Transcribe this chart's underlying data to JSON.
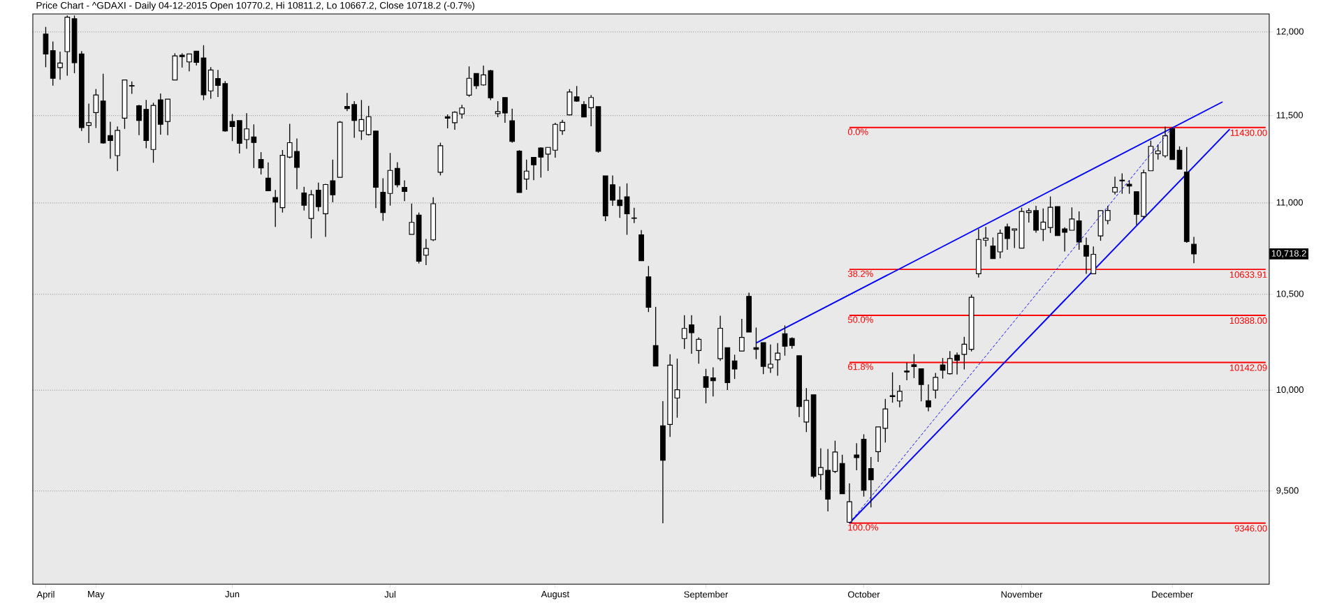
{
  "chart_data": {
    "type": "candlestick",
    "title": "Price Chart - ^GDAXI - Daily 04-12-2015 Open 10770.2, Hi 10811.2, Lo 10667.2, Close 10718.2 (-0.7%)",
    "categories": [
      "April",
      null,
      null,
      null,
      null,
      null,
      null,
      "May",
      null,
      null,
      null,
      null,
      null,
      null,
      null,
      null,
      null,
      null,
      null,
      null,
      null,
      null,
      null,
      null,
      null,
      null,
      "Jun",
      null,
      null,
      null,
      null,
      null,
      null,
      null,
      null,
      null,
      null,
      null,
      null,
      null,
      null,
      null,
      null,
      null,
      null,
      null,
      null,
      null,
      "Jul",
      null,
      null,
      null,
      null,
      null,
      null,
      null,
      null,
      null,
      null,
      null,
      null,
      null,
      null,
      null,
      null,
      null,
      null,
      null,
      null,
      null,
      null,
      "August",
      null,
      null,
      null,
      null,
      null,
      null,
      null,
      null,
      null,
      null,
      null,
      null,
      null,
      null,
      null,
      null,
      null,
      null,
      null,
      null,
      "September",
      null,
      null,
      null,
      null,
      null,
      null,
      null,
      null,
      null,
      null,
      null,
      null,
      null,
      null,
      null,
      null,
      null,
      null,
      null,
      null,
      null,
      "October",
      null,
      null,
      null,
      null,
      null,
      null,
      null,
      null,
      null,
      null,
      null,
      null,
      null,
      null,
      null,
      null,
      null,
      null,
      null,
      null,
      null,
      "November",
      null,
      null,
      null,
      null,
      null,
      null,
      null,
      null,
      null,
      null,
      null,
      null,
      null,
      null,
      null,
      null,
      null,
      null,
      null,
      null,
      "December",
      null,
      null,
      null,
      null,
      null,
      null,
      null,
      null,
      null,
      null,
      null,
      null,
      null
    ],
    "ohlc": [
      [
        11987,
        12030,
        11786,
        11866
      ],
      [
        11886,
        11941,
        11676,
        11720
      ],
      [
        11784,
        11880,
        11711,
        11811
      ],
      [
        11880,
        12100,
        11735,
        12090
      ],
      [
        12080,
        12100,
        11750,
        11813
      ],
      [
        11866,
        11883,
        11410,
        11429
      ],
      [
        11443,
        11570,
        11340,
        11458
      ],
      [
        11517,
        11656,
        11427,
        11621
      ],
      [
        11585,
        11747,
        11336,
        11340
      ],
      [
        11383,
        11463,
        11250,
        11354
      ],
      [
        11268,
        11436,
        11179,
        11413
      ],
      [
        11484,
        11710,
        11422,
        11710
      ],
      [
        11676,
        11701,
        11628,
        11674
      ],
      [
        11557,
        11563,
        11386,
        11471
      ],
      [
        11536,
        11591,
        11310,
        11354
      ],
      [
        11303,
        11575,
        11227,
        11559
      ],
      [
        11592,
        11629,
        11389,
        11449
      ],
      [
        11465,
        11596,
        11386,
        11596
      ],
      [
        11710,
        11870,
        11710,
        11854
      ],
      [
        11859,
        11870,
        11784,
        11850
      ],
      [
        11818,
        11866,
        11761,
        11866
      ],
      [
        11883,
        11883,
        11797,
        11815
      ],
      [
        11842,
        11919,
        11590,
        11622
      ],
      [
        11645,
        11786,
        11599,
        11769
      ],
      [
        11718,
        11770,
        11609,
        11677
      ],
      [
        11688,
        11703,
        11406,
        11410
      ],
      [
        11465,
        11509,
        11351,
        11436
      ],
      [
        11470,
        11470,
        11280,
        11338
      ],
      [
        11360,
        11513,
        11307,
        11422
      ],
      [
        11375,
        11448,
        11197,
        11343
      ],
      [
        11246,
        11288,
        11160,
        11198
      ],
      [
        11139,
        11229,
        11068,
        11068
      ],
      [
        11030,
        11073,
        10866,
        11004
      ],
      [
        10973,
        11300,
        10946,
        11269
      ],
      [
        11259,
        11451,
        11252,
        11342
      ],
      [
        11291,
        11366,
        11076,
        11200
      ],
      [
        11056,
        11090,
        10957,
        10987
      ],
      [
        10913,
        11072,
        10803,
        11046
      ],
      [
        11071,
        11114,
        10953,
        10979
      ],
      [
        10939,
        11107,
        10811,
        11103
      ],
      [
        11124,
        11245,
        11003,
        11045
      ],
      [
        11144,
        11468,
        11144,
        11461
      ],
      [
        11553,
        11633,
        11526,
        11540
      ],
      [
        11564,
        11584,
        11370,
        11471
      ],
      [
        11410,
        11591,
        11358,
        11476
      ],
      [
        11389,
        11557,
        11383,
        11493
      ],
      [
        11409,
        11409,
        10971,
        11088
      ],
      [
        11060,
        11139,
        10900,
        10946
      ],
      [
        11053,
        11283,
        10985,
        11183
      ],
      [
        11195,
        11230,
        11087,
        11102
      ],
      [
        11087,
        11127,
        11010,
        11064
      ],
      [
        10825,
        10996,
        10825,
        10891
      ],
      [
        10932,
        10946,
        10666,
        10678
      ],
      [
        10711,
        10800,
        10657,
        10748
      ],
      [
        10795,
        11031,
        10788,
        10995
      ],
      [
        11173,
        11342,
        11155,
        11324
      ],
      [
        11493,
        11506,
        11425,
        11484
      ],
      [
        11458,
        11525,
        11417,
        11519
      ],
      [
        11509,
        11563,
        11482,
        11544
      ],
      [
        11620,
        11791,
        11610,
        11720
      ],
      [
        11748,
        11748,
        11656,
        11675
      ],
      [
        11680,
        11796,
        11676,
        11740
      ],
      [
        11765,
        11771,
        11590,
        11604
      ],
      [
        11511,
        11584,
        11490,
        11523
      ],
      [
        11606,
        11606,
        11457,
        11515
      ],
      [
        11469,
        11540,
        11342,
        11349
      ],
      [
        11293,
        11299,
        11058,
        11058
      ],
      [
        11134,
        11245,
        11074,
        11179
      ],
      [
        11257,
        11257,
        11128,
        11215
      ],
      [
        11311,
        11315,
        11143,
        11259
      ],
      [
        11276,
        11315,
        11180,
        11315
      ],
      [
        11299,
        11458,
        11256,
        11448
      ],
      [
        11411,
        11475,
        11387,
        11460
      ],
      [
        11504,
        11655,
        11501,
        11638
      ],
      [
        11610,
        11674,
        11580,
        11584
      ],
      [
        11564,
        11584,
        11491,
        11491
      ],
      [
        11546,
        11620,
        11437,
        11606
      ],
      [
        11552,
        11552,
        11284,
        11292
      ],
      [
        11152,
        11152,
        10898,
        10927
      ],
      [
        11102,
        11154,
        10983,
        11015
      ],
      [
        11015,
        11092,
        10917,
        10985
      ],
      [
        11034,
        11110,
        10823,
        10939
      ],
      [
        10916,
        10973,
        10887,
        10914
      ],
      [
        10823,
        10849,
        10681,
        10681
      ],
      [
        10594,
        10652,
        10405,
        10431
      ],
      [
        10229,
        10433,
        10123,
        10123
      ],
      [
        9820,
        9944,
        9345,
        9650
      ],
      [
        9827,
        10184,
        9765,
        10128
      ],
      [
        9960,
        10162,
        9861,
        10002
      ],
      [
        10266,
        10389,
        10212,
        10319
      ],
      [
        10338,
        10389,
        10187,
        10297
      ],
      [
        10204,
        10273,
        10136,
        10262
      ],
      [
        10069,
        10109,
        9933,
        10014
      ],
      [
        10063,
        10117,
        9968,
        10048
      ],
      [
        10161,
        10386,
        10150,
        10320
      ],
      [
        10219,
        10219,
        10001,
        10038
      ],
      [
        10150,
        10182,
        10057,
        10108
      ],
      [
        10201,
        10370,
        10201,
        10272
      ],
      [
        10489,
        10509,
        10300,
        10300
      ],
      [
        10219,
        10324,
        10159,
        10210
      ],
      [
        10245,
        10245,
        10082,
        10122
      ],
      [
        10114,
        10235,
        10088,
        10133
      ],
      [
        10156,
        10242,
        10074,
        10190
      ],
      [
        10291,
        10335,
        10177,
        10226
      ],
      [
        10267,
        10273,
        10213,
        10230
      ],
      [
        10177,
        10177,
        9864,
        9917
      ],
      [
        9839,
        10010,
        9789,
        9948
      ],
      [
        9976,
        9976,
        9562,
        9571
      ],
      [
        9580,
        9709,
        9505,
        9614
      ],
      [
        9601,
        9705,
        9402,
        9461
      ],
      [
        9595,
        9746,
        9587,
        9690
      ],
      [
        9634,
        9677,
        9487,
        9487
      ],
      [
        9350,
        9537,
        9346,
        9448
      ],
      [
        9676,
        9734,
        9601,
        9663
      ],
      [
        9753,
        9778,
        9473,
        9504
      ],
      [
        9609,
        9666,
        9421,
        9554
      ],
      [
        9692,
        9815,
        9642,
        9815
      ],
      [
        9808,
        9956,
        9737,
        9905
      ],
      [
        9972,
        10091,
        9937,
        9967
      ],
      [
        9945,
        10025,
        9913,
        9994
      ],
      [
        10098,
        10141,
        10051,
        10093
      ],
      [
        10130,
        10185,
        10061,
        10121
      ],
      [
        10109,
        10109,
        9943,
        10029
      ],
      [
        9947,
        10029,
        9893,
        9915
      ],
      [
        10000,
        10088,
        9957,
        10065
      ],
      [
        10129,
        10165,
        10059,
        10102
      ],
      [
        10084,
        10201,
        10080,
        10162
      ],
      [
        10180,
        10193,
        10080,
        10153
      ],
      [
        10184,
        10275,
        10106,
        10236
      ],
      [
        10210,
        10498,
        10199,
        10484
      ],
      [
        10610,
        10855,
        10590,
        10797
      ],
      [
        10793,
        10866,
        10759,
        10804
      ],
      [
        10761,
        10808,
        10692,
        10692
      ],
      [
        10729,
        10852,
        10694,
        10831
      ],
      [
        10867,
        10885,
        10741,
        10802
      ],
      [
        10848,
        10855,
        10750,
        10855
      ],
      [
        10750,
        10973,
        10748,
        10952
      ],
      [
        10946,
        10970,
        10890,
        10956
      ],
      [
        10957,
        10984,
        10834,
        10848
      ],
      [
        10853,
        10969,
        10788,
        10893
      ],
      [
        10863,
        11036,
        10833,
        10975
      ],
      [
        10979,
        10979,
        10818,
        10818
      ],
      [
        10855,
        10864,
        10731,
        10837
      ],
      [
        10848,
        10975,
        10848,
        10910
      ],
      [
        10900,
        10952,
        10741,
        10783
      ],
      [
        10764,
        10808,
        10610,
        10706
      ],
      [
        10610,
        10759,
        10610,
        10716
      ],
      [
        10817,
        10957,
        10790,
        10957
      ],
      [
        10902,
        10984,
        10881,
        10958
      ],
      [
        11061,
        11147,
        11047,
        11087
      ],
      [
        11128,
        11166,
        11051,
        11124
      ],
      [
        11105,
        11127,
        11051,
        11094
      ],
      [
        11063,
        11063,
        10877,
        10936
      ],
      [
        10925,
        11187,
        10915,
        11170
      ],
      [
        11181,
        11354,
        11181,
        11321
      ],
      [
        11278,
        11332,
        11245,
        11295
      ],
      [
        11267,
        11435,
        11256,
        11382
      ],
      [
        11424,
        11430,
        11245,
        11245
      ],
      [
        11299,
        11321,
        11191,
        11191
      ],
      [
        11174,
        11317,
        10779,
        10786
      ],
      [
        10770.2,
        10811.2,
        10667.2,
        10718.2
      ],
      null,
      null,
      null,
      null,
      null,
      null,
      null,
      null,
      null,
      null
    ],
    "series": [
      {
        "type": "line",
        "name": "0.0%",
        "color": "#ff0000",
        "values": [
          null,
          null,
          null,
          null,
          null,
          null,
          null,
          null,
          null,
          null,
          null,
          null,
          null,
          null,
          null,
          null,
          null,
          null,
          null,
          null,
          null,
          null,
          null,
          null,
          null,
          null,
          null,
          null,
          null,
          null,
          null,
          null,
          null,
          null,
          null,
          null,
          null,
          null,
          null,
          null,
          null,
          null,
          null,
          null,
          null,
          null,
          null,
          null,
          null,
          null,
          null,
          null,
          null,
          null,
          null,
          null,
          null,
          null,
          null,
          null,
          null,
          null,
          null,
          null,
          null,
          null,
          null,
          null,
          null,
          null,
          null,
          null,
          null,
          null,
          null,
          null,
          null,
          null,
          null,
          null,
          null,
          null,
          null,
          null,
          null,
          null,
          null,
          null,
          null,
          null,
          null,
          null,
          null,
          null,
          null,
          null,
          null,
          null,
          null,
          null,
          null,
          null,
          null,
          null,
          null,
          null,
          null,
          null,
          null,
          null,
          null,
          null,
          11430,
          null,
          null,
          null,
          null,
          null,
          null,
          null,
          null,
          null,
          null,
          null,
          null,
          null,
          null,
          null,
          null,
          null,
          null,
          null,
          null,
          null,
          null,
          null,
          null,
          null,
          null,
          null,
          null,
          null,
          null,
          null,
          null,
          null,
          null,
          null,
          null,
          null,
          null,
          null,
          null,
          null,
          null,
          null,
          null,
          null,
          null,
          null,
          null,
          null,
          null,
          null,
          null,
          null,
          null,
          null,
          null,
          null,
          11430
        ]
      },
      {
        "type": "line",
        "name": "38.2%",
        "color": "#ff0000",
        "values": [
          null,
          null,
          null,
          null,
          null,
          null,
          null,
          null,
          null,
          null,
          null,
          null,
          null,
          null,
          null,
          null,
          null,
          null,
          null,
          null,
          null,
          null,
          null,
          null,
          null,
          null,
          null,
          null,
          null,
          null,
          null,
          null,
          null,
          null,
          null,
          null,
          null,
          null,
          null,
          null,
          null,
          null,
          null,
          null,
          null,
          null,
          null,
          null,
          null,
          null,
          null,
          null,
          null,
          null,
          null,
          null,
          null,
          null,
          null,
          null,
          null,
          null,
          null,
          null,
          null,
          null,
          null,
          null,
          null,
          null,
          null,
          null,
          null,
          null,
          null,
          null,
          null,
          null,
          null,
          null,
          null,
          null,
          null,
          null,
          null,
          null,
          null,
          null,
          null,
          null,
          null,
          null,
          null,
          null,
          null,
          null,
          null,
          null,
          null,
          null,
          null,
          null,
          null,
          null,
          null,
          null,
          null,
          null,
          null,
          null,
          null,
          null,
          10633.91,
          null,
          null,
          null,
          null,
          null,
          null,
          null,
          null,
          null,
          null,
          null,
          null,
          null,
          null,
          null,
          null,
          null,
          null,
          null,
          null,
          null,
          null,
          null,
          null,
          null,
          null,
          null,
          null,
          null,
          null,
          null,
          null,
          null,
          null,
          null,
          null,
          null,
          null,
          null,
          null,
          null,
          null,
          null,
          null,
          null,
          null,
          null,
          null,
          null,
          null,
          null,
          null,
          null,
          null,
          null,
          null,
          null,
          10633.91
        ]
      },
      {
        "type": "line",
        "name": "50.0%",
        "color": "#ff0000",
        "values": [
          null,
          null,
          null,
          null,
          null,
          null,
          null,
          null,
          null,
          null,
          null,
          null,
          null,
          null,
          null,
          null,
          null,
          null,
          null,
          null,
          null,
          null,
          null,
          null,
          null,
          null,
          null,
          null,
          null,
          null,
          null,
          null,
          null,
          null,
          null,
          null,
          null,
          null,
          null,
          null,
          null,
          null,
          null,
          null,
          null,
          null,
          null,
          null,
          null,
          null,
          null,
          null,
          null,
          null,
          null,
          null,
          null,
          null,
          null,
          null,
          null,
          null,
          null,
          null,
          null,
          null,
          null,
          null,
          null,
          null,
          null,
          null,
          null,
          null,
          null,
          null,
          null,
          null,
          null,
          null,
          null,
          null,
          null,
          null,
          null,
          null,
          null,
          null,
          null,
          null,
          null,
          null,
          null,
          null,
          null,
          null,
          null,
          null,
          null,
          null,
          null,
          null,
          null,
          null,
          null,
          null,
          null,
          null,
          null,
          null,
          null,
          null,
          10388,
          null,
          null,
          null,
          null,
          null,
          null,
          null,
          null,
          null,
          null,
          null,
          null,
          null,
          null,
          null,
          null,
          null,
          null,
          null,
          null,
          null,
          null,
          null,
          null,
          null,
          null,
          null,
          null,
          null,
          null,
          null,
          null,
          null,
          null,
          null,
          null,
          null,
          null,
          null,
          null,
          null,
          null,
          null,
          null,
          null,
          null,
          null,
          null,
          null,
          null,
          null,
          null,
          null,
          null,
          null,
          null,
          null,
          10388
        ]
      },
      {
        "type": "line",
        "name": "61.8%",
        "color": "#ff0000",
        "values": [
          null,
          null,
          null,
          null,
          null,
          null,
          null,
          null,
          null,
          null,
          null,
          null,
          null,
          null,
          null,
          null,
          null,
          null,
          null,
          null,
          null,
          null,
          null,
          null,
          null,
          null,
          null,
          null,
          null,
          null,
          null,
          null,
          null,
          null,
          null,
          null,
          null,
          null,
          null,
          null,
          null,
          null,
          null,
          null,
          null,
          null,
          null,
          null,
          null,
          null,
          null,
          null,
          null,
          null,
          null,
          null,
          null,
          null,
          null,
          null,
          null,
          null,
          null,
          null,
          null,
          null,
          null,
          null,
          null,
          null,
          null,
          null,
          null,
          null,
          null,
          null,
          null,
          null,
          null,
          null,
          null,
          null,
          null,
          null,
          null,
          null,
          null,
          null,
          null,
          null,
          null,
          null,
          null,
          null,
          null,
          null,
          null,
          null,
          null,
          null,
          null,
          null,
          null,
          null,
          null,
          null,
          null,
          null,
          null,
          null,
          null,
          null,
          10142.09,
          null,
          null,
          null,
          null,
          null,
          null,
          null,
          null,
          null,
          null,
          null,
          null,
          null,
          null,
          null,
          null,
          null,
          null,
          null,
          null,
          null,
          null,
          null,
          null,
          null,
          null,
          null,
          null,
          null,
          null,
          null,
          null,
          null,
          null,
          null,
          null,
          null,
          null,
          null,
          null,
          null,
          null,
          null,
          null,
          null,
          null,
          null,
          null,
          null,
          null,
          null,
          null,
          null,
          null,
          null,
          null,
          null,
          10142.09
        ]
      },
      {
        "type": "line",
        "name": "100.0%",
        "color": "#ff0000",
        "values": [
          null,
          null,
          null,
          null,
          null,
          null,
          null,
          null,
          null,
          null,
          null,
          null,
          null,
          null,
          null,
          null,
          null,
          null,
          null,
          null,
          null,
          null,
          null,
          null,
          null,
          null,
          null,
          null,
          null,
          null,
          null,
          null,
          null,
          null,
          null,
          null,
          null,
          null,
          null,
          null,
          null,
          null,
          null,
          null,
          null,
          null,
          null,
          null,
          null,
          null,
          null,
          null,
          null,
          null,
          null,
          null,
          null,
          null,
          null,
          null,
          null,
          null,
          null,
          null,
          null,
          null,
          null,
          null,
          null,
          null,
          null,
          null,
          null,
          null,
          null,
          null,
          null,
          null,
          null,
          null,
          null,
          null,
          null,
          null,
          null,
          null,
          null,
          null,
          null,
          null,
          null,
          null,
          null,
          null,
          null,
          null,
          null,
          null,
          null,
          null,
          null,
          null,
          null,
          null,
          null,
          null,
          null,
          null,
          null,
          null,
          null,
          null,
          9346,
          null,
          null,
          null,
          null,
          null,
          null,
          null,
          null,
          null,
          null,
          null,
          null,
          null,
          null,
          null,
          null,
          null,
          null,
          null,
          null,
          null,
          null,
          null,
          null,
          null,
          null,
          null,
          null,
          null,
          null,
          null,
          null,
          null,
          null,
          null,
          null,
          null,
          null,
          null,
          null,
          null,
          null,
          null,
          null,
          null,
          null,
          null,
          null,
          null,
          null,
          null,
          null,
          null,
          null,
          null,
          null,
          null,
          9346
        ]
      },
      {
        "type": "line",
        "color": "#0000ff",
        "values": [
          null,
          null,
          null,
          null,
          null,
          null,
          null,
          null,
          null,
          null,
          null,
          null,
          null,
          null,
          null,
          null,
          null,
          null,
          null,
          null,
          null,
          null,
          null,
          null,
          null,
          null,
          null,
          null,
          null,
          null,
          null,
          null,
          null,
          null,
          null,
          null,
          null,
          null,
          null,
          null,
          null,
          null,
          null,
          null,
          null,
          null,
          null,
          null,
          null,
          null,
          null,
          null,
          null,
          null,
          null,
          null,
          null,
          null,
          null,
          null,
          null,
          null,
          null,
          null,
          null,
          null,
          null,
          null,
          null,
          null,
          null,
          null,
          null,
          null,
          null,
          null,
          null,
          null,
          null,
          null,
          null,
          null,
          null,
          null,
          null,
          null,
          null,
          null,
          null,
          null,
          null,
          null,
          null,
          null,
          null,
          null,
          null,
          null,
          null,
          10243,
          null,
          null,
          null,
          null,
          null,
          null,
          null,
          null,
          null,
          null,
          null,
          null,
          null,
          null,
          null,
          null,
          null,
          null,
          null,
          null,
          null,
          null,
          null,
          null,
          null,
          null,
          null,
          null,
          null,
          null,
          null,
          null,
          null,
          null,
          null,
          null,
          null,
          null,
          null,
          null,
          null,
          null,
          null,
          null,
          null,
          null,
          null,
          null,
          null,
          null,
          null,
          null,
          null,
          null,
          null,
          null,
          null,
          null,
          null,
          null,
          null,
          null,
          null,
          null,
          11580,
          null,
          null,
          null,
          null,
          null,
          null
        ]
      },
      {
        "type": "line",
        "color": "#0000ff",
        "values": [
          null,
          null,
          null,
          null,
          null,
          null,
          null,
          null,
          null,
          null,
          null,
          null,
          null,
          null,
          null,
          null,
          null,
          null,
          null,
          null,
          null,
          null,
          null,
          null,
          null,
          null,
          null,
          null,
          null,
          null,
          null,
          null,
          null,
          null,
          null,
          null,
          null,
          null,
          null,
          null,
          null,
          null,
          null,
          null,
          null,
          null,
          null,
          null,
          null,
          null,
          null,
          null,
          null,
          null,
          null,
          null,
          null,
          null,
          null,
          null,
          null,
          null,
          null,
          null,
          null,
          null,
          null,
          null,
          null,
          null,
          null,
          null,
          null,
          null,
          null,
          null,
          null,
          null,
          null,
          null,
          null,
          null,
          null,
          null,
          null,
          null,
          null,
          null,
          null,
          null,
          null,
          null,
          null,
          null,
          null,
          null,
          null,
          null,
          null,
          null,
          null,
          null,
          null,
          null,
          null,
          null,
          null,
          null,
          null,
          null,
          null,
          null,
          9346,
          null,
          null,
          null,
          null,
          null,
          null,
          null,
          null,
          null,
          null,
          null,
          null,
          null,
          null,
          null,
          null,
          null,
          null,
          null,
          null,
          null,
          null,
          null,
          null,
          null,
          null,
          null,
          null,
          null,
          null,
          null,
          null,
          null,
          null,
          null,
          null,
          null,
          null,
          null,
          null,
          null,
          null,
          null,
          null,
          null,
          null,
          null,
          null,
          null,
          null,
          null,
          null,
          11420,
          null,
          null,
          null,
          null,
          null
        ]
      },
      {
        "type": "line",
        "color": "#0000ff",
        "line_style": "dashed",
        "values": [
          null,
          null,
          null,
          null,
          null,
          null,
          null,
          null,
          null,
          null,
          null,
          null,
          null,
          null,
          null,
          null,
          null,
          null,
          null,
          null,
          null,
          null,
          null,
          null,
          null,
          null,
          null,
          null,
          null,
          null,
          null,
          null,
          null,
          null,
          null,
          null,
          null,
          null,
          null,
          null,
          null,
          null,
          null,
          null,
          null,
          null,
          null,
          null,
          null,
          null,
          null,
          null,
          null,
          null,
          null,
          null,
          null,
          null,
          null,
          null,
          null,
          null,
          null,
          null,
          null,
          null,
          null,
          null,
          null,
          null,
          null,
          null,
          null,
          null,
          null,
          null,
          null,
          null,
          null,
          null,
          null,
          null,
          null,
          null,
          null,
          null,
          null,
          null,
          null,
          null,
          null,
          null,
          null,
          null,
          null,
          null,
          null,
          null,
          null,
          null,
          null,
          null,
          null,
          null,
          null,
          null,
          null,
          null,
          null,
          null,
          null,
          null,
          9346,
          null,
          null,
          null,
          null,
          null,
          null,
          null,
          null,
          null,
          null,
          null,
          null,
          null,
          null,
          null,
          null,
          null,
          null,
          null,
          null,
          null,
          null,
          null,
          null,
          null,
          null,
          null,
          null,
          null,
          null,
          null,
          null,
          null,
          null,
          null,
          null,
          null,
          null,
          null,
          null,
          null,
          null,
          null,
          null,
          11430,
          null,
          null,
          null,
          null,
          null,
          null,
          null,
          null,
          null,
          null,
          null,
          null,
          null
        ]
      }
    ],
    "annotations": [
      "11430.00",
      "10633.91",
      "10388.00",
      "10142.09",
      "9346.00",
      "10,718.2"
    ],
    "ylim": [
      9060,
      12110
    ],
    "yticks": [
      {
        "value": 9500,
        "label": "9,500"
      },
      {
        "value": 10000,
        "label": "10,000"
      },
      {
        "value": 10500,
        "label": "10,500"
      },
      {
        "value": 11000,
        "label": "11,000"
      },
      {
        "value": 11500,
        "label": "11,500"
      },
      {
        "value": 12000,
        "label": "12,000"
      }
    ],
    "log": true,
    "grid": "y"
  }
}
